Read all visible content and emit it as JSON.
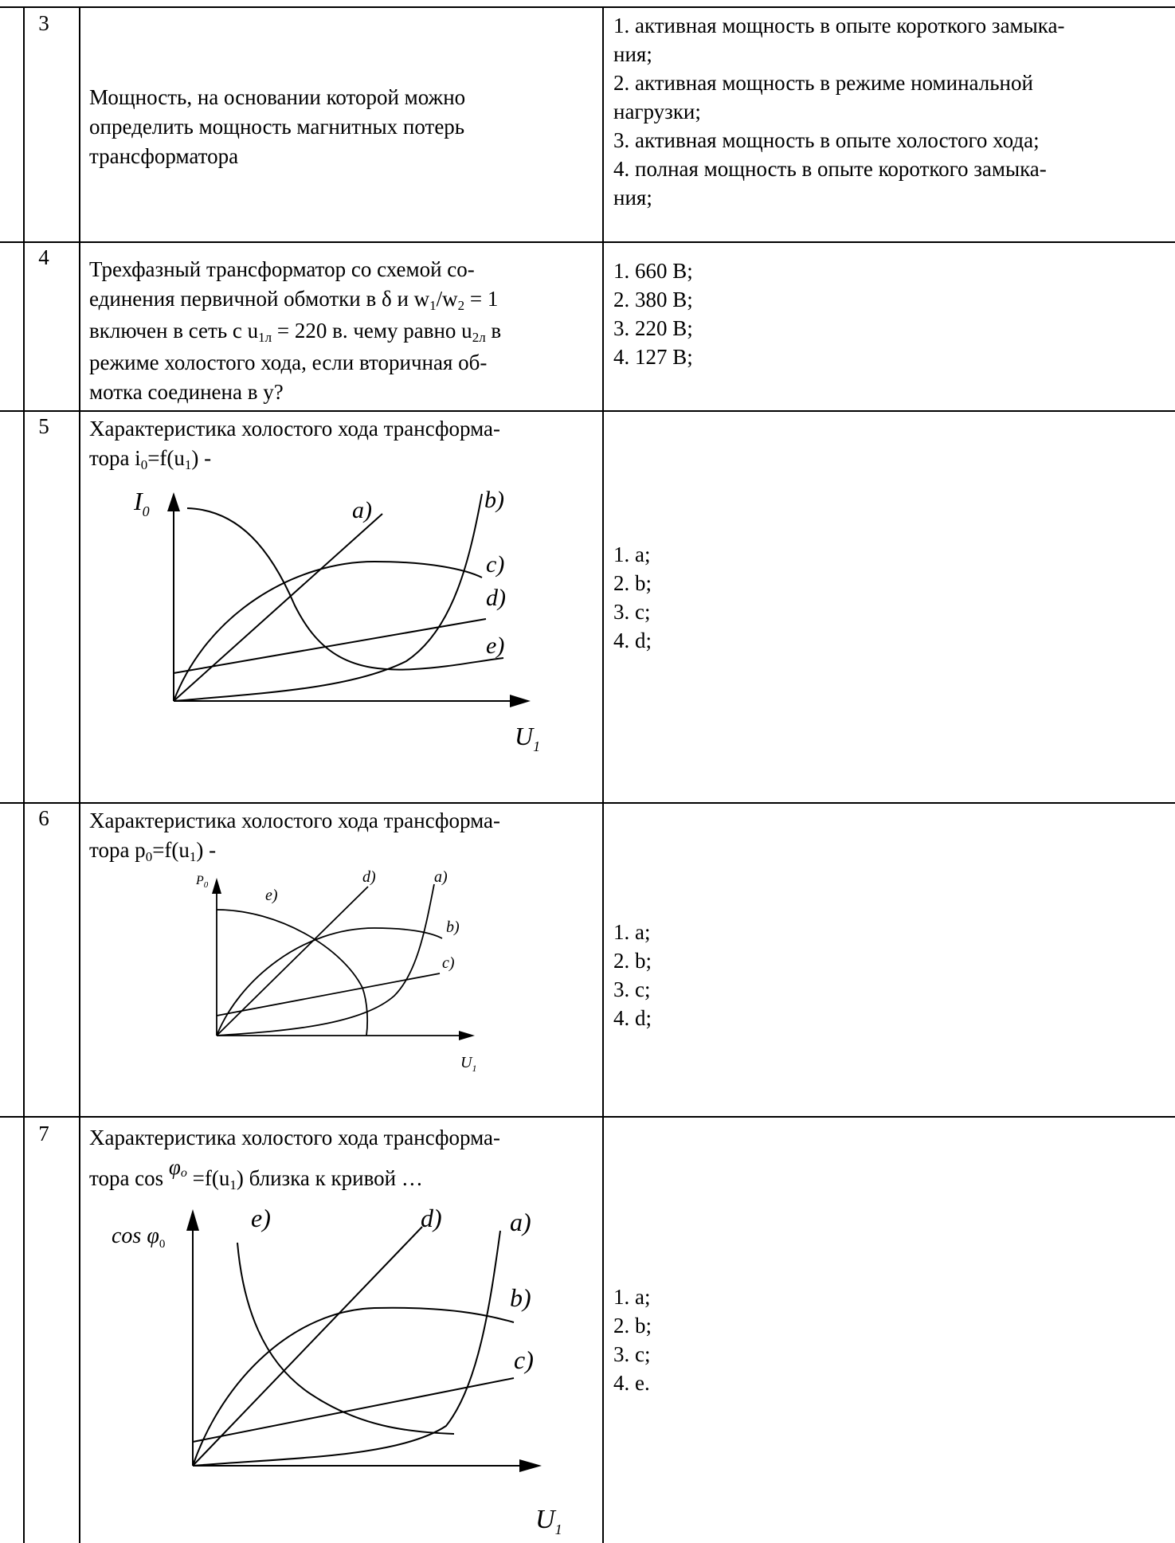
{
  "rows": [
    {
      "number": "3",
      "question": [
        "Мощность, на основании которой можно",
        "определить мощность магнитных потерь",
        "трансформатора"
      ],
      "answers": [
        "1. активная мощность в опыте короткого замыка-",
        "ния;",
        "2. активная мощность в режиме номинальной",
        "нагрузки;",
        "3. активная мощность в опыте холостого хода;",
        "4. полная мощность в опыте короткого замыка-",
        "ния;"
      ]
    },
    {
      "number": "4",
      "question": {
        "line1": "Трехфазный трансформатор со схемой со-",
        "line2_a": "единения первичной обмотки в  δ  и w",
        "line2_sub1": "1",
        "line2_b": "/w",
        "line2_sub2": "2",
        "line2_c": " = 1",
        "line3_a": "включен в сеть с u",
        "line3_sub1": "1л",
        "line3_b": " = 220 в. чему равно  u",
        "line3_sub2": "2л",
        "line3_c": "  в",
        "line4": "режиме холостого хода, если вторичная об-",
        "line5": "мотка соединена в  y?"
      },
      "answers": [
        "1. 660 В;",
        "2. 380 В;",
        "3. 220 В;",
        "4. 127 В;"
      ]
    },
    {
      "number": "5",
      "question_line1": "Характеристика холостого хода трансформа-",
      "question_line2_a": "тора i",
      "question_line2_sub1": "0",
      "question_line2_b": "=f(u",
      "question_line2_sub2": "1",
      "question_line2_c": ")  -",
      "figure": {
        "y_axis": "I",
        "y_sub": "0",
        "x_axis": "U",
        "x_sub": "1",
        "curves": [
          "a)",
          "b)",
          "c)",
          "d)",
          "e)"
        ]
      },
      "answers": [
        "1. a;",
        "2. b;",
        "3. c;",
        "4. d;"
      ]
    },
    {
      "number": "6",
      "question_line1": "Характеристика холостого хода трансформа-",
      "question_line2_a": "тора p",
      "question_line2_sub1": "0",
      "question_line2_b": "=f(u",
      "question_line2_sub2": "1",
      "question_line2_c": ") -",
      "figure": {
        "y_axis": "P",
        "y_sub": "0",
        "x_axis": "U",
        "x_sub": "1",
        "curves": [
          "e)",
          "d)",
          "a)",
          "b)",
          "c)"
        ]
      },
      "answers": [
        "1. a;",
        "2. b;",
        "3. c;",
        "4. d;"
      ]
    },
    {
      "number": "7",
      "question_line1": " Характеристика холостого хода трансформа-",
      "question_line2_a": "тора cos ",
      "question_line2_phi": "φ",
      "question_line2_phisub": "o",
      "question_line2_b": " =f(u",
      "question_line2_sub2": "1",
      "question_line2_c": ")  близка к кривой …",
      "figure": {
        "y_axis": "cos φ",
        "y_sub": "0",
        "x_axis": "U",
        "x_sub": "1",
        "curves": [
          "e)",
          "d)",
          "a)",
          "b)",
          "c)"
        ]
      },
      "answers": [
        "1. a;",
        "2. b;",
        "3. c;",
        "4. e."
      ]
    }
  ]
}
